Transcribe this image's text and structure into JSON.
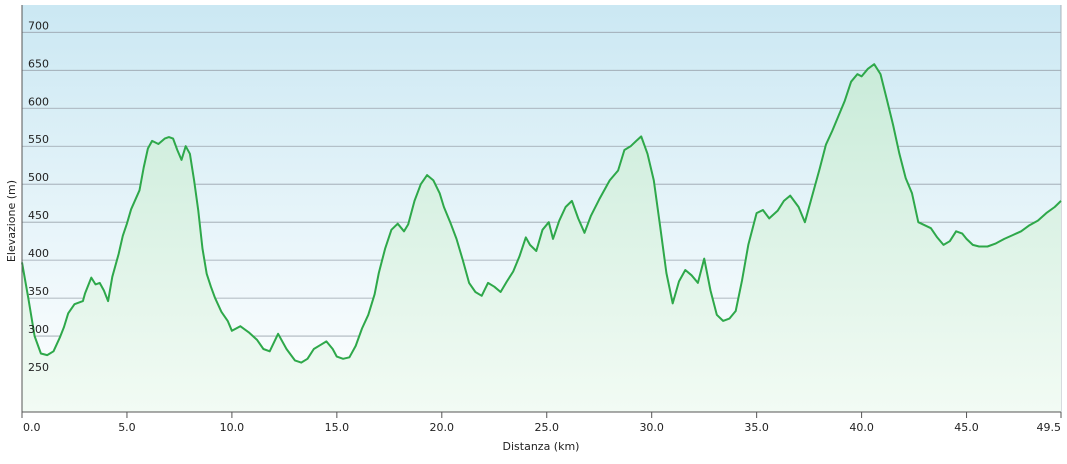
{
  "chart_data": {
    "type": "area",
    "xlabel": "Distanza  (km)",
    "ylabel": "Elevazione (m)",
    "xlim": [
      0,
      49.5
    ],
    "ylim": [
      200,
      736
    ],
    "x_ticks": [
      0,
      5,
      10,
      15,
      20,
      25,
      30,
      35,
      40,
      45,
      49.5
    ],
    "x_tick_labels": [
      "0.0",
      "5.0",
      "10.0",
      "15.0",
      "20.0",
      "25.0",
      "30.0",
      "35.0",
      "40.0",
      "45.0",
      "49.5"
    ],
    "y_ticks": [
      250,
      300,
      350,
      400,
      450,
      500,
      550,
      600,
      650,
      700
    ],
    "y_tick_labels": [
      "250",
      "300",
      "350",
      "400",
      "450",
      "500",
      "550",
      "600",
      "650",
      "700"
    ],
    "grid": true,
    "legend": "none",
    "colors": {
      "line": "#2ea84a",
      "fill_top": "#c9ebd9",
      "fill_bottom": "#f2fbf4",
      "bg_top": "#cbe8f3",
      "bg_bottom": "#ffffff",
      "grid": "#9aa3ad"
    },
    "series": [
      {
        "x": [
          0,
          0.3,
          0.6,
          0.9,
          1.2,
          1.5,
          1.8,
          2.0,
          2.2,
          2.5,
          2.9,
          3.0,
          3.3,
          3.5,
          3.7,
          3.9,
          4.1,
          4.3,
          4.6,
          4.8,
          5.0,
          5.2,
          5.6,
          5.8,
          6.0,
          6.2,
          6.5,
          6.8,
          7.0,
          7.2,
          7.4,
          7.6,
          7.8,
          8.0,
          8.2,
          8.4,
          8.6,
          8.8,
          9.0,
          9.2,
          9.5,
          9.8,
          10.0,
          10.4,
          10.8,
          11.2,
          11.5,
          11.8,
          12.2,
          12.6,
          13.0,
          13.3,
          13.6,
          13.9,
          14.2,
          14.5,
          14.8,
          15.0,
          15.3,
          15.6,
          15.9,
          16.2,
          16.5,
          16.8,
          17.0,
          17.3,
          17.6,
          17.9,
          18.2,
          18.4,
          18.7,
          19.0,
          19.3,
          19.6,
          19.9,
          20.1,
          20.4,
          20.7,
          21.0,
          21.3,
          21.6,
          21.9,
          22.2,
          22.5,
          22.8,
          23.1,
          23.4,
          23.7,
          24.0,
          24.2,
          24.5,
          24.8,
          25.1,
          25.3,
          25.6,
          25.9,
          26.2,
          26.5,
          26.8,
          27.1,
          27.5,
          28.0,
          28.4,
          28.7,
          29.0,
          29.3,
          29.5,
          29.8,
          30.1,
          30.4,
          30.7,
          31.0,
          31.3,
          31.6,
          31.9,
          32.2,
          32.5,
          32.8,
          33.1,
          33.4,
          33.7,
          34.0,
          34.3,
          34.6,
          35.0,
          35.3,
          35.6,
          36.0,
          36.3,
          36.6,
          37.0,
          37.3,
          37.6,
          38.0,
          38.3,
          38.6,
          38.9,
          39.2,
          39.5,
          39.8,
          40.0,
          40.3,
          40.6,
          40.9,
          41.2,
          41.5,
          41.8,
          42.1,
          42.4,
          42.7,
          43.0,
          43.3,
          43.6,
          43.9,
          44.2,
          44.5,
          44.8,
          45.0,
          45.3,
          45.6,
          46.0,
          46.4,
          46.8,
          47.2,
          47.6,
          48.0,
          48.4,
          48.8,
          49.2,
          49.5
        ],
        "y": [
          397,
          350,
          300,
          277,
          275,
          280,
          298,
          312,
          330,
          342,
          346,
          356,
          377,
          368,
          370,
          360,
          346,
          378,
          408,
          432,
          448,
          467,
          492,
          522,
          547,
          557,
          553,
          560,
          562,
          560,
          545,
          532,
          550,
          540,
          505,
          465,
          415,
          382,
          365,
          350,
          332,
          320,
          307,
          313,
          305,
          295,
          283,
          280,
          303,
          283,
          268,
          265,
          270,
          283,
          288,
          293,
          283,
          273,
          270,
          272,
          287,
          310,
          328,
          355,
          383,
          415,
          440,
          448,
          438,
          447,
          478,
          500,
          512,
          505,
          488,
          470,
          450,
          428,
          400,
          370,
          358,
          353,
          370,
          365,
          358,
          372,
          385,
          405,
          430,
          420,
          412,
          440,
          450,
          428,
          452,
          470,
          478,
          455,
          436,
          458,
          480,
          505,
          518,
          545,
          550,
          558,
          563,
          540,
          505,
          445,
          383,
          343,
          372,
          387,
          380,
          370,
          402,
          360,
          328,
          320,
          323,
          333,
          373,
          420,
          462,
          466,
          455,
          465,
          478,
          485,
          470,
          450,
          480,
          520,
          552,
          570,
          590,
          610,
          635,
          645,
          642,
          652,
          658,
          645,
          612,
          578,
          540,
          508,
          488,
          450,
          446,
          442,
          430,
          420,
          425,
          438,
          435,
          428,
          420,
          418,
          418,
          422,
          428,
          433,
          438,
          446,
          452,
          462,
          470,
          478
        ]
      }
    ]
  }
}
